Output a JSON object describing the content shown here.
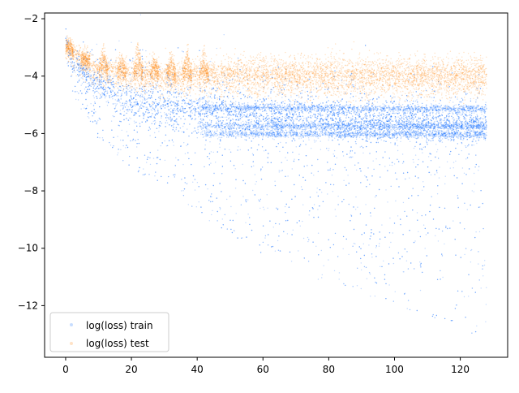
{
  "chart_data": {
    "type": "scatter",
    "xlim": [
      -6.4,
      134.4
    ],
    "ylim": [
      -13.8,
      -1.8
    ],
    "xticks": [
      0,
      20,
      40,
      60,
      80,
      100,
      120
    ],
    "yticks": [
      -2,
      -4,
      -6,
      -8,
      -10,
      -12
    ],
    "grid": false,
    "legend_position": "lower-left",
    "series": [
      {
        "name": "log(loss) train",
        "color": "#1f77ff",
        "x_range": [
          0,
          128
        ],
        "density": "very dense, semi-transparent",
        "trend": [
          {
            "x": 0,
            "median": -2.8,
            "low": -3.4,
            "high": -2.4
          },
          {
            "x": 2,
            "median": -3.6,
            "low": -4.6,
            "high": -3.2
          },
          {
            "x": 10,
            "median": -4.3,
            "low": -6.2,
            "high": -3.5
          },
          {
            "x": 20,
            "median": -4.9,
            "low": -7.2,
            "high": -3.8
          },
          {
            "x": 40,
            "median": -5.3,
            "low": -8.8,
            "high": -4.2
          },
          {
            "x": 60,
            "median": -5.5,
            "low": -10.2,
            "high": -4.5
          },
          {
            "x": 80,
            "median": -5.6,
            "low": -11.3,
            "high": -4.7
          },
          {
            "x": 100,
            "median": -5.7,
            "low": -12.0,
            "high": -4.8
          },
          {
            "x": 128,
            "median": -5.75,
            "low": -13.2,
            "high": -4.9
          }
        ],
        "bands": [
          {
            "y_start": -5.1,
            "y_end": -5.15,
            "from_x": 40,
            "to_x": 128
          },
          {
            "y_start": -5.75,
            "y_end": -5.75,
            "from_x": 40,
            "to_x": 128
          },
          {
            "y_start": -6.0,
            "y_end": -6.05,
            "from_x": 40,
            "to_x": 128
          }
        ]
      },
      {
        "name": "log(loss) test",
        "color": "#ff8c1a",
        "x_range": [
          0,
          128
        ],
        "density": "dense, semi-transparent",
        "trend": [
          {
            "x": 0,
            "median": -3.0,
            "low": -3.7,
            "high": -2.7
          },
          {
            "x": 10,
            "median": -3.8,
            "low": -4.5,
            "high": -3.3
          },
          {
            "x": 30,
            "median": -4.0,
            "low": -4.7,
            "high": -3.4
          },
          {
            "x": 60,
            "median": -4.0,
            "low": -4.8,
            "high": -3.3
          },
          {
            "x": 128,
            "median": -4.0,
            "low": -4.8,
            "high": -3.3
          }
        ],
        "spikes": [
          {
            "x": 1,
            "peak": -2.8
          },
          {
            "x": 6,
            "peak": -3.3
          },
          {
            "x": 11.5,
            "peak": -3.0
          },
          {
            "x": 17,
            "peak": -3.3
          },
          {
            "x": 22,
            "peak": -2.8
          },
          {
            "x": 27,
            "peak": -3.3
          },
          {
            "x": 32,
            "peak": -3.2
          },
          {
            "x": 37,
            "peak": -3.0
          },
          {
            "x": 42,
            "peak": -3.0
          }
        ]
      }
    ]
  }
}
